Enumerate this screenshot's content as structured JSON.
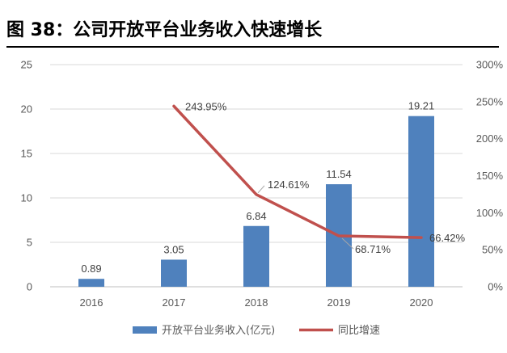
{
  "figure": {
    "title": "图 38：公司开放平台业务收入快速增长"
  },
  "chart_data": {
    "type": "bar",
    "categories": [
      "2016",
      "2017",
      "2018",
      "2019",
      "2020"
    ],
    "series": [
      {
        "name": "开放平台业务收入(亿元)",
        "type": "bar",
        "axis": "left",
        "color": "#4F81BD",
        "values": [
          0.89,
          3.05,
          6.84,
          11.54,
          19.21
        ],
        "labels": [
          "0.89",
          "3.05",
          "6.84",
          "11.54",
          "19.21"
        ]
      },
      {
        "name": "同比增速",
        "type": "line",
        "axis": "right",
        "color": "#C0504D",
        "values": [
          null,
          243.95,
          124.61,
          68.71,
          66.42
        ],
        "labels": [
          null,
          "243.95%",
          "124.61%",
          "68.71%",
          "66.42%"
        ]
      }
    ],
    "y_left": {
      "min": 0,
      "max": 25,
      "step": 5,
      "ticks": [
        "0",
        "5",
        "10",
        "15",
        "20",
        "25"
      ]
    },
    "y_right": {
      "min": 0,
      "max": 300,
      "step": 50,
      "ticks": [
        "0%",
        "50%",
        "100%",
        "150%",
        "200%",
        "250%",
        "300%"
      ]
    },
    "grid": true,
    "legend_position": "bottom"
  }
}
